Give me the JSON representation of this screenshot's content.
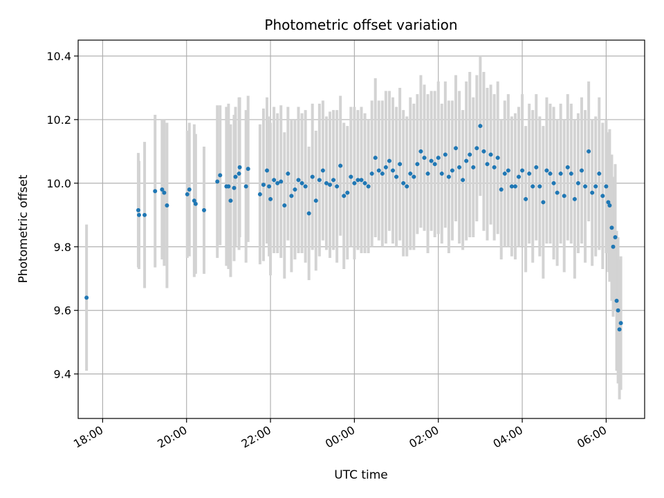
{
  "chart_data": {
    "type": "scatter",
    "title": "Photometric offset variation",
    "xlabel": "UTC time",
    "ylabel": "Photometric offset",
    "x_axis": "time",
    "xlim": [
      "17:25",
      "06:55"
    ],
    "ylim": [
      9.26,
      10.45
    ],
    "xticks": [
      "18:00",
      "20:00",
      "22:00",
      "00:00",
      "02:00",
      "04:00",
      "06:00"
    ],
    "yticks": [
      "9.4",
      "9.6",
      "9.8",
      "10.0",
      "10.2",
      "10.4"
    ],
    "grid": true,
    "colors": {
      "points": "#1f77b4",
      "errorbars": "#d3d3d3",
      "grid": "#b0b0b0"
    },
    "series": [
      {
        "marker": "point",
        "errorbars": true,
        "x": [
          "17:37",
          "18:51",
          "18:52",
          "19:00",
          "19:15",
          "19:25",
          "19:28",
          "19:32",
          "20:01",
          "20:04",
          "20:11",
          "20:13",
          "20:25",
          "20:44",
          "20:48",
          "20:57",
          "21:00",
          "21:03",
          "21:08",
          "21:10",
          "21:15",
          "21:16",
          "21:25",
          "21:28",
          "21:45",
          "21:50",
          "21:55",
          "21:58",
          "22:00",
          "22:05",
          "22:10",
          "22:15",
          "22:20",
          "22:25",
          "22:30",
          "22:35",
          "22:40",
          "22:45",
          "22:50",
          "22:55",
          "23:00",
          "23:05",
          "23:10",
          "23:15",
          "23:20",
          "23:25",
          "23:30",
          "23:35",
          "23:40",
          "23:45",
          "23:50",
          "23:55",
          "00:00",
          "00:05",
          "00:10",
          "00:15",
          "00:20",
          "00:25",
          "00:30",
          "00:35",
          "00:40",
          "00:45",
          "00:50",
          "00:55",
          "01:00",
          "01:05",
          "01:10",
          "01:15",
          "01:20",
          "01:25",
          "01:30",
          "01:35",
          "01:40",
          "01:45",
          "01:50",
          "01:55",
          "02:00",
          "02:05",
          "02:10",
          "02:15",
          "02:20",
          "02:25",
          "02:30",
          "02:35",
          "02:40",
          "02:45",
          "02:50",
          "02:55",
          "03:00",
          "03:05",
          "03:10",
          "03:15",
          "03:20",
          "03:25",
          "03:30",
          "03:35",
          "03:40",
          "03:45",
          "03:50",
          "03:55",
          "04:00",
          "04:05",
          "04:10",
          "04:15",
          "04:20",
          "04:25",
          "04:30",
          "04:35",
          "04:40",
          "04:45",
          "04:50",
          "04:55",
          "05:00",
          "05:05",
          "05:10",
          "05:15",
          "05:20",
          "05:25",
          "05:30",
          "05:35",
          "05:40",
          "05:45",
          "05:50",
          "05:55",
          "06:00",
          "06:03",
          "06:05",
          "06:08",
          "06:10",
          "06:13",
          "06:15",
          "06:17",
          "06:19",
          "06:21"
        ],
        "y": [
          9.64,
          9.915,
          9.9,
          9.9,
          9.975,
          9.98,
          9.97,
          9.93,
          9.965,
          9.98,
          9.945,
          9.935,
          9.915,
          10.005,
          10.025,
          9.99,
          9.99,
          9.945,
          9.985,
          10.02,
          10.03,
          10.05,
          9.99,
          10.045,
          9.965,
          9.995,
          10.04,
          9.99,
          9.95,
          10.01,
          10.0,
          10.005,
          9.93,
          10.03,
          9.96,
          9.98,
          10.01,
          10.0,
          9.99,
          9.905,
          10.02,
          9.945,
          10.01,
          10.04,
          10.0,
          9.995,
          10.01,
          9.99,
          10.055,
          9.96,
          9.97,
          10.02,
          10.0,
          10.01,
          10.01,
          10.0,
          9.99,
          10.03,
          10.08,
          10.04,
          10.03,
          10.05,
          10.07,
          10.04,
          10.02,
          10.06,
          10.0,
          9.99,
          10.03,
          10.02,
          10.06,
          10.1,
          10.08,
          10.03,
          10.07,
          10.06,
          10.08,
          10.03,
          10.09,
          10.02,
          10.04,
          10.11,
          10.05,
          10.01,
          10.07,
          10.09,
          10.05,
          10.11,
          10.18,
          10.1,
          10.06,
          10.09,
          10.05,
          10.08,
          9.98,
          10.03,
          10.04,
          9.99,
          9.99,
          10.02,
          10.04,
          9.95,
          10.03,
          9.99,
          10.05,
          9.99,
          9.94,
          10.04,
          10.03,
          10.0,
          9.97,
          10.03,
          9.96,
          10.05,
          10.03,
          9.95,
          10.0,
          10.04,
          9.99,
          10.1,
          9.97,
          9.99,
          10.03,
          9.96,
          9.99,
          9.94,
          9.93,
          9.86,
          9.8,
          9.83,
          9.63,
          9.6,
          9.54,
          9.56
        ],
        "yerr": [
          0.23,
          0.18,
          0.17,
          0.23,
          0.24,
          0.22,
          0.23,
          0.26,
          0.2,
          0.21,
          0.24,
          0.22,
          0.2,
          0.24,
          0.22,
          0.25,
          0.26,
          0.24,
          0.23,
          0.22,
          0.24,
          0.22,
          0.24,
          0.23,
          0.22,
          0.24,
          0.23,
          0.22,
          0.24,
          0.23,
          0.22,
          0.24,
          0.23,
          0.21,
          0.24,
          0.22,
          0.23,
          0.22,
          0.24,
          0.21,
          0.23,
          0.22,
          0.24,
          0.22,
          0.21,
          0.23,
          0.22,
          0.24,
          0.22,
          0.23,
          0.21,
          0.22,
          0.24,
          0.22,
          0.23,
          0.22,
          0.21,
          0.23,
          0.25,
          0.22,
          0.23,
          0.24,
          0.22,
          0.23,
          0.22,
          0.24,
          0.23,
          0.22,
          0.24,
          0.23,
          0.22,
          0.24,
          0.23,
          0.25,
          0.22,
          0.23,
          0.24,
          0.22,
          0.23,
          0.24,
          0.22,
          0.23,
          0.24,
          0.22,
          0.25,
          0.26,
          0.22,
          0.23,
          0.22,
          0.25,
          0.24,
          0.22,
          0.23,
          0.24,
          0.22,
          0.23,
          0.24,
          0.22,
          0.23,
          0.22,
          0.24,
          0.23,
          0.22,
          0.24,
          0.23,
          0.22,
          0.24,
          0.23,
          0.22,
          0.24,
          0.23,
          0.22,
          0.24,
          0.23,
          0.22,
          0.25,
          0.22,
          0.23,
          0.24,
          0.22,
          0.23,
          0.22,
          0.24,
          0.23,
          0.21,
          0.22,
          0.24,
          0.23,
          0.22,
          0.23,
          0.22,
          0.23,
          0.22,
          0.21
        ]
      }
    ]
  }
}
